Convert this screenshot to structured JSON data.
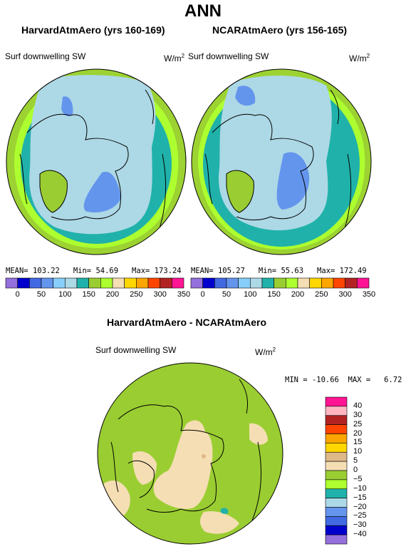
{
  "title": "ANN",
  "panels": [
    {
      "model_title": "HarvardAtmAero (yrs 160-169)",
      "variable": "Surf downwelling SW",
      "units_base": "W/m",
      "units_exp": "2",
      "stats": {
        "mean_label": "MEAN=",
        "mean": "103.22",
        "min_label": "Min=",
        "min": "54.69",
        "max_label": "Max=",
        "max": "173.24"
      }
    },
    {
      "model_title": "NCARAtmAero (yrs 156-165)",
      "variable": "Surf downwelling SW",
      "units_base": "W/m",
      "units_exp": "2",
      "stats": {
        "mean_label": "MEAN=",
        "mean": "105.27",
        "min_label": "Min=",
        "min": "55.63",
        "max_label": "Max=",
        "max": "172.49"
      }
    }
  ],
  "top_colorbar": {
    "colors": [
      "#9370DB",
      "#0000CD",
      "#4169E1",
      "#6495ED",
      "#87CEFA",
      "#ADD8E6",
      "#20B2AA",
      "#9ACD32",
      "#ADFF2F",
      "#F5DEB3",
      "#FFD700",
      "#FFA500",
      "#FF4500",
      "#B22222",
      "#FF1493"
    ],
    "tick_labels": [
      "0",
      "50",
      "100",
      "150",
      "200",
      "250",
      "300",
      "350"
    ]
  },
  "diff_panel": {
    "title": "HarvardAtmAero - NCARAtmAero",
    "variable": "Surf downwelling SW",
    "units_base": "W/m",
    "units_exp": "2",
    "stats": {
      "min_label": "MIN =",
      "min": "-10.66",
      "max_label": "MAX =",
      "max": "6.72"
    }
  },
  "diff_colorbar": {
    "colors_top_to_bottom": [
      "#FF1493",
      "#FFB6C1",
      "#B22222",
      "#FF4500",
      "#FFA500",
      "#FFD700",
      "#DEB887",
      "#F5DEB3",
      "#9ACD32",
      "#ADFF2F",
      "#20B2AA",
      "#ADD8E6",
      "#6495ED",
      "#4169E1",
      "#0000CD",
      "#9370DB"
    ],
    "tick_labels_top_to_bottom": [
      "40",
      "30",
      "25",
      "20",
      "15",
      "10",
      "5",
      "0",
      "−5",
      "−10",
      "−15",
      "−20",
      "−25",
      "−30",
      "−40"
    ]
  },
  "map_colors": {
    "light_blue": "#ADD8E6",
    "blue": "#6495ED",
    "teal": "#20B2AA",
    "yellow_green": "#9ACD32",
    "green_yellow": "#ADFF2F",
    "wheat": "#F5DEB3",
    "tan": "#DEB887"
  }
}
